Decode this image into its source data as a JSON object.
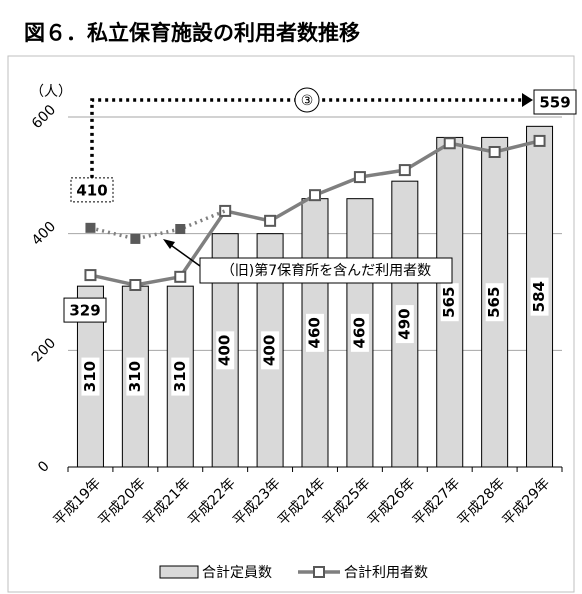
{
  "chart_data": {
    "type": "bar",
    "title": "図６．私立保育施設の利用者数推移",
    "y_label": "（人）",
    "categories": [
      "平成19年",
      "平成20年",
      "平成21年",
      "平成22年",
      "平成23年",
      "平成24年",
      "平成25年",
      "平成26年",
      "平成27年",
      "平成28年",
      "平成29年"
    ],
    "ylim": [
      0,
      600
    ],
    "yticks": [
      0,
      200,
      400,
      600
    ],
    "grid": true,
    "series": [
      {
        "name": "合計定員数",
        "type": "bar",
        "color": "#d9d9d9",
        "values": [
          310,
          310,
          310,
          400,
          400,
          460,
          460,
          490,
          565,
          565,
          584
        ]
      },
      {
        "name": "合計利用者数",
        "type": "line",
        "color": "#7f7f7f",
        "values": [
          329,
          312,
          326,
          439,
          422,
          466,
          497,
          509,
          555,
          540,
          559
        ]
      },
      {
        "name": "（旧)第7保育所を含んだ利用者数",
        "type": "dotted",
        "color": "#808080",
        "values": [
          410,
          391,
          408,
          439,
          null,
          null,
          null,
          null,
          null,
          null,
          null
        ]
      }
    ],
    "annotation": "③"
  }
}
